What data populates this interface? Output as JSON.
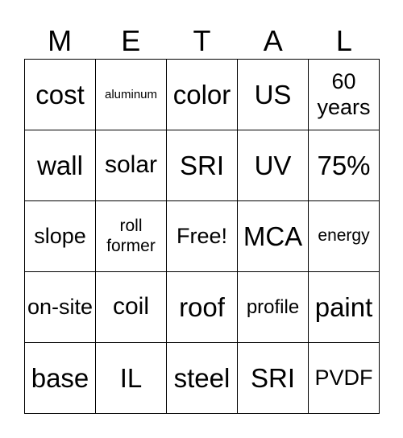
{
  "header": [
    "M",
    "E",
    "T",
    "A",
    "L"
  ],
  "cells": [
    "cost",
    "aluminum",
    "color",
    "US",
    "60 years",
    "wall",
    "solar",
    "SRI",
    "UV",
    "75%",
    "slope",
    "roll former",
    "Free!",
    "MCA",
    "energy",
    "on-site",
    "coil",
    "roof",
    "profile",
    "paint",
    "base",
    "IL",
    "steel",
    "SRI",
    "PVDF"
  ]
}
